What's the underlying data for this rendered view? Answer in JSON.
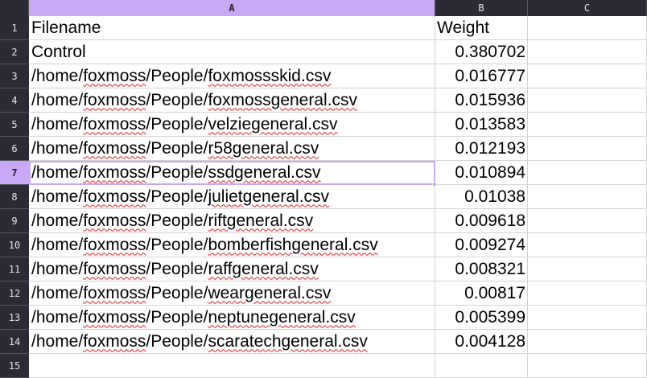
{
  "sheet": {
    "columns": [
      "A",
      "B",
      "C"
    ],
    "active_column": "A",
    "active_row": 7,
    "rows": [
      {
        "num": "1",
        "a": "Filename",
        "b": "Weight"
      },
      {
        "num": "2",
        "a": "Control",
        "b": "0.380702"
      },
      {
        "num": "3",
        "a_pre": "/home/",
        "a_spell": "foxmoss",
        "a_mid": "/People/",
        "a_spell2": "foxmossskid.csv",
        "b": "0.016777"
      },
      {
        "num": "4",
        "a_pre": "/home/",
        "a_spell": "foxmoss",
        "a_mid": "/People/",
        "a_spell2": "foxmossgeneral.csv",
        "b": "0.015936"
      },
      {
        "num": "5",
        "a_pre": "/home/",
        "a_spell": "foxmoss",
        "a_mid": "/People/",
        "a_spell2": "velziegeneral.csv",
        "b": "0.013583"
      },
      {
        "num": "6",
        "a_pre": "/home/",
        "a_spell": "foxmoss",
        "a_mid": "/People/",
        "a_spell2": "r58general.csv",
        "b": "0.012193"
      },
      {
        "num": "7",
        "a_pre": "/home/",
        "a_spell": "foxmoss",
        "a_mid": "/People/",
        "a_spell2": "ssdgeneral.csv",
        "b": "0.010894"
      },
      {
        "num": "8",
        "a_pre": "/home/",
        "a_spell": "foxmoss",
        "a_mid": "/People/",
        "a_spell2": "julietgeneral.csv",
        "b": "0.01038"
      },
      {
        "num": "9",
        "a_pre": "/home/",
        "a_spell": "foxmoss",
        "a_mid": "/People/",
        "a_spell2": "riftgeneral.csv",
        "b": "0.009618"
      },
      {
        "num": "10",
        "a_pre": "/home/",
        "a_spell": "foxmoss",
        "a_mid": "/People/",
        "a_spell2": "bomberfishgeneral.csv",
        "b": "0.009274"
      },
      {
        "num": "11",
        "a_pre": "/home/",
        "a_spell": "foxmoss",
        "a_mid": "/People/",
        "a_spell2": "raffgeneral.csv",
        "b": "0.008321"
      },
      {
        "num": "12",
        "a_pre": "/home/",
        "a_spell": "foxmoss",
        "a_mid": "/People/",
        "a_spell2": "weargeneral.csv",
        "b": "0.00817"
      },
      {
        "num": "13",
        "a_pre": "/home/",
        "a_spell": "foxmoss",
        "a_mid": "/People/",
        "a_spell2": "neptunegeneral.csv",
        "b": "0.005399"
      },
      {
        "num": "14",
        "a_pre": "/home/",
        "a_spell": "foxmoss",
        "a_mid": "/People/",
        "a_spell2": "scaratechgeneral.csv",
        "b": "0.004128"
      },
      {
        "num": "15",
        "a": "",
        "b": ""
      }
    ]
  },
  "colors": {
    "header_bg": "#2b2b35",
    "header_text": "#e6e6e6",
    "active_accent": "#c9a8f5",
    "spellcheck": "#e02020",
    "gridline": "#d4d4d4"
  }
}
